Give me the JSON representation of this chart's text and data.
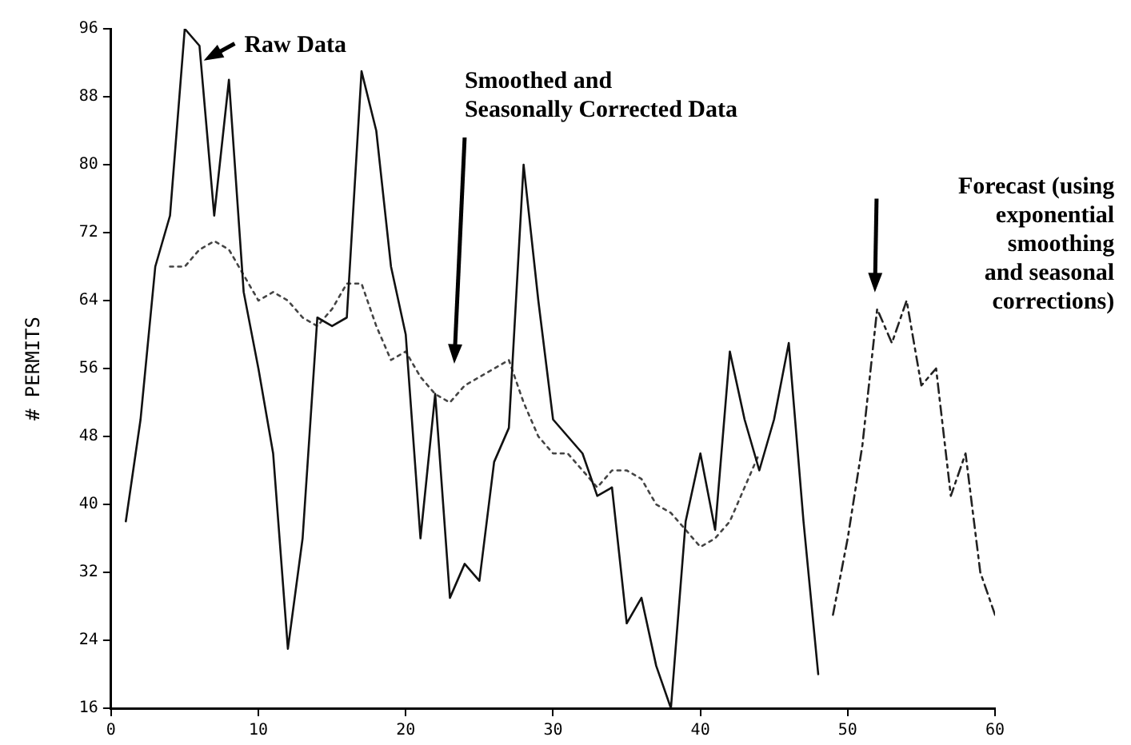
{
  "chart_data": {
    "type": "line",
    "ylabel": "# PERMITS",
    "xlim": [
      0,
      60
    ],
    "xticks": [
      0,
      10,
      20,
      30,
      40,
      50,
      60
    ],
    "ylim": [
      16,
      96
    ],
    "yticks": [
      16,
      24,
      32,
      40,
      48,
      56,
      64,
      72,
      80,
      88,
      96
    ],
    "grid": false,
    "legend": false,
    "marker": "none",
    "series": [
      {
        "color": "#111111",
        "line_style": "solid",
        "x": [
          1,
          2,
          3,
          4,
          5,
          6,
          7,
          8,
          9,
          10,
          11,
          12,
          13,
          14,
          15,
          16,
          17,
          18,
          19,
          20,
          21,
          22,
          23,
          24,
          25,
          26,
          27,
          28,
          29,
          30,
          31,
          32,
          33,
          34,
          35,
          36,
          37,
          38,
          39,
          40,
          41,
          42,
          43,
          44,
          45,
          46,
          47,
          48
        ],
        "values": [
          38,
          50,
          68,
          74,
          96,
          94,
          74,
          90,
          65,
          56,
          46,
          23,
          36,
          62,
          61,
          62,
          91,
          84,
          68,
          60,
          36,
          53,
          29,
          33,
          31,
          45,
          49,
          80,
          64,
          50,
          48,
          46,
          41,
          42,
          26,
          29,
          21,
          16,
          38,
          46,
          37,
          58,
          50,
          44,
          50,
          59,
          38,
          20
        ]
      },
      {
        "color": "#444444",
        "line_style": "dotted",
        "x": [
          4,
          5,
          6,
          7,
          8,
          9,
          10,
          11,
          12,
          13,
          14,
          15,
          16,
          17,
          18,
          19,
          20,
          21,
          22,
          23,
          24,
          25,
          26,
          27,
          28,
          29,
          30,
          31,
          32,
          33,
          34,
          35,
          36,
          37,
          38,
          39,
          40,
          41,
          42,
          43,
          44
        ],
        "values": [
          68,
          68,
          70,
          71,
          70,
          67,
          64,
          65,
          64,
          62,
          61,
          63,
          66,
          66,
          61,
          57,
          58,
          55,
          53,
          52,
          54,
          55,
          56,
          57,
          52,
          48,
          46,
          46,
          44,
          42,
          44,
          44,
          43,
          40,
          39,
          37,
          35,
          36,
          38,
          42,
          46
        ]
      },
      {
        "color": "#222222",
        "line_style": "dashed",
        "x": [
          49,
          50,
          51,
          52,
          53,
          54,
          55,
          56,
          57,
          58,
          59,
          60
        ],
        "values": [
          27,
          36,
          47,
          63,
          59,
          64,
          54,
          56,
          41,
          46,
          32,
          27
        ]
      }
    ],
    "annotations": [
      {
        "text": "Raw Data",
        "x": 6,
        "y": 92
      },
      "Smoothed and Seasonally Corrected Data",
      "Forecast (using exponential smoothing and seasonal corrections)"
    ]
  }
}
